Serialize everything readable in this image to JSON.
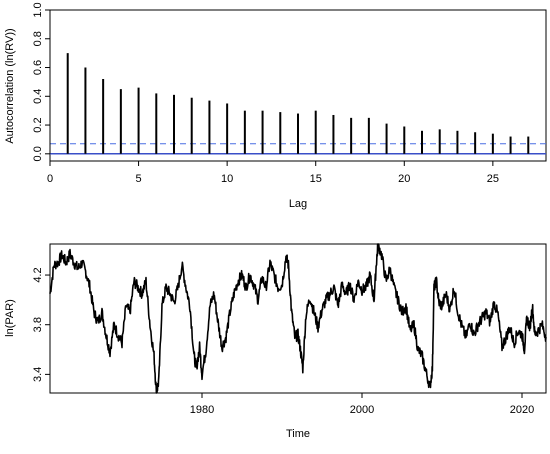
{
  "chart_data": [
    {
      "type": "bar",
      "subtype": "acf",
      "title": "",
      "xlabel": "Lag",
      "ylabel": "Autocorrelation (ln(RV))",
      "xlim": [
        0,
        28
      ],
      "ylim": [
        -0.05,
        1.0
      ],
      "xticks": [
        0,
        5,
        10,
        15,
        20,
        25
      ],
      "yticks": [
        0.0,
        0.2,
        0.4,
        0.6,
        0.8,
        1.0
      ],
      "ytick_labels": [
        "0.0",
        "0.2",
        "0.4",
        "0.6",
        "0.8",
        "1.0"
      ],
      "confidence_bound": 0.07,
      "confidence_color": "#4a6fe3",
      "zero_line_color": "#3a4fc8",
      "lags": [
        1,
        2,
        3,
        4,
        5,
        6,
        7,
        8,
        9,
        10,
        11,
        12,
        13,
        14,
        15,
        16,
        17,
        18,
        19,
        20,
        21,
        22,
        23,
        24,
        25,
        26,
        27
      ],
      "values": [
        0.7,
        0.6,
        0.52,
        0.45,
        0.46,
        0.42,
        0.41,
        0.39,
        0.37,
        0.35,
        0.3,
        0.3,
        0.29,
        0.28,
        0.3,
        0.27,
        0.25,
        0.25,
        0.21,
        0.19,
        0.16,
        0.17,
        0.16,
        0.15,
        0.14,
        0.12,
        0.12
      ],
      "grid": false
    },
    {
      "type": "line",
      "title": "",
      "xlabel": "Time",
      "ylabel": "ln(PAR)",
      "xlim": [
        1961,
        2023
      ],
      "ylim": [
        3.25,
        4.45
      ],
      "xticks": [
        1980,
        2000,
        2020
      ],
      "yticks": [
        3.4,
        3.8,
        4.2
      ],
      "ytick_labels": [
        "3.4",
        "3.8",
        "4.2"
      ],
      "line_color": "#000000",
      "grid": false,
      "anchors": [
        [
          1961.0,
          4.05
        ],
        [
          1961.5,
          4.28
        ],
        [
          1962.0,
          4.3
        ],
        [
          1962.5,
          4.36
        ],
        [
          1963.0,
          4.3
        ],
        [
          1963.5,
          4.37
        ],
        [
          1964.0,
          4.3
        ],
        [
          1964.5,
          4.25
        ],
        [
          1965.0,
          4.3
        ],
        [
          1965.5,
          4.22
        ],
        [
          1966.0,
          4.1
        ],
        [
          1966.5,
          3.9
        ],
        [
          1967.0,
          3.82
        ],
        [
          1967.5,
          3.9
        ],
        [
          1968.0,
          3.72
        ],
        [
          1968.5,
          3.58
        ],
        [
          1969.0,
          3.8
        ],
        [
          1969.5,
          3.72
        ],
        [
          1970.0,
          3.65
        ],
        [
          1970.5,
          3.95
        ],
        [
          1971.0,
          3.9
        ],
        [
          1971.5,
          4.15
        ],
        [
          1972.0,
          4.1
        ],
        [
          1972.5,
          4.05
        ],
        [
          1973.0,
          4.15
        ],
        [
          1973.5,
          3.8
        ],
        [
          1974.0,
          3.55
        ],
        [
          1974.3,
          3.25
        ],
        [
          1974.6,
          3.35
        ],
        [
          1975.0,
          3.95
        ],
        [
          1975.5,
          4.1
        ],
        [
          1976.0,
          4.05
        ],
        [
          1976.5,
          3.98
        ],
        [
          1977.0,
          4.1
        ],
        [
          1977.5,
          4.28
        ],
        [
          1978.0,
          4.1
        ],
        [
          1978.5,
          3.95
        ],
        [
          1979.0,
          3.55
        ],
        [
          1979.3,
          3.45
        ],
        [
          1979.7,
          3.62
        ],
        [
          1980.0,
          3.4
        ],
        [
          1980.5,
          3.6
        ],
        [
          1981.0,
          3.95
        ],
        [
          1981.5,
          4.05
        ],
        [
          1982.0,
          3.82
        ],
        [
          1982.5,
          3.62
        ],
        [
          1983.0,
          3.7
        ],
        [
          1983.5,
          3.9
        ],
        [
          1984.0,
          4.05
        ],
        [
          1984.5,
          4.15
        ],
        [
          1985.0,
          4.2
        ],
        [
          1985.5,
          4.1
        ],
        [
          1986.0,
          4.2
        ],
        [
          1986.5,
          4.12
        ],
        [
          1987.0,
          4.0
        ],
        [
          1987.5,
          4.18
        ],
        [
          1988.0,
          4.1
        ],
        [
          1988.5,
          4.3
        ],
        [
          1989.0,
          4.2
        ],
        [
          1989.5,
          4.1
        ],
        [
          1990.0,
          4.12
        ],
        [
          1990.5,
          4.35
        ],
        [
          1990.8,
          4.28
        ],
        [
          1991.2,
          3.9
        ],
        [
          1991.6,
          3.7
        ],
        [
          1992.0,
          3.72
        ],
        [
          1992.3,
          3.6
        ],
        [
          1992.6,
          3.45
        ],
        [
          1993.0,
          3.88
        ],
        [
          1993.5,
          4.02
        ],
        [
          1994.0,
          3.9
        ],
        [
          1994.5,
          3.78
        ],
        [
          1995.0,
          3.92
        ],
        [
          1995.5,
          4.0
        ],
        [
          1996.0,
          4.05
        ],
        [
          1996.5,
          4.1
        ],
        [
          1997.0,
          3.95
        ],
        [
          1997.5,
          4.12
        ],
        [
          1998.0,
          4.05
        ],
        [
          1998.5,
          4.12
        ],
        [
          1999.0,
          4.0
        ],
        [
          1999.5,
          4.15
        ],
        [
          2000.0,
          4.08
        ],
        [
          2000.5,
          4.1
        ],
        [
          2001.0,
          4.2
        ],
        [
          2001.5,
          4.0
        ],
        [
          2001.8,
          4.3
        ],
        [
          2002.0,
          4.45
        ],
        [
          2002.5,
          4.35
        ],
        [
          2003.0,
          4.15
        ],
        [
          2003.5,
          4.25
        ],
        [
          2004.0,
          4.1
        ],
        [
          2004.5,
          4.0
        ],
        [
          2005.0,
          3.9
        ],
        [
          2005.5,
          3.95
        ],
        [
          2006.0,
          3.75
        ],
        [
          2006.5,
          3.8
        ],
        [
          2007.0,
          3.6
        ],
        [
          2007.5,
          3.55
        ],
        [
          2008.0,
          3.42
        ],
        [
          2008.5,
          3.3
        ],
        [
          2008.8,
          3.45
        ],
        [
          2009.0,
          4.1
        ],
        [
          2009.3,
          4.15
        ],
        [
          2009.6,
          3.98
        ],
        [
          2010.0,
          3.95
        ],
        [
          2010.5,
          4.05
        ],
        [
          2011.0,
          3.92
        ],
        [
          2011.5,
          4.1
        ],
        [
          2012.0,
          3.9
        ],
        [
          2012.5,
          3.78
        ],
        [
          2013.0,
          3.7
        ],
        [
          2013.5,
          3.82
        ],
        [
          2014.0,
          3.72
        ],
        [
          2014.5,
          3.8
        ],
        [
          2015.0,
          3.85
        ],
        [
          2015.5,
          3.9
        ],
        [
          2016.0,
          3.82
        ],
        [
          2016.5,
          3.98
        ],
        [
          2017.0,
          3.88
        ],
        [
          2017.5,
          3.62
        ],
        [
          2018.0,
          3.7
        ],
        [
          2018.5,
          3.78
        ],
        [
          2019.0,
          3.65
        ],
        [
          2019.5,
          3.75
        ],
        [
          2020.0,
          3.72
        ],
        [
          2020.3,
          3.6
        ],
        [
          2020.6,
          3.85
        ],
        [
          2021.0,
          3.78
        ],
        [
          2021.3,
          3.95
        ],
        [
          2021.6,
          3.72
        ],
        [
          2022.0,
          3.75
        ],
        [
          2022.5,
          3.8
        ],
        [
          2023.0,
          3.7
        ]
      ]
    }
  ]
}
